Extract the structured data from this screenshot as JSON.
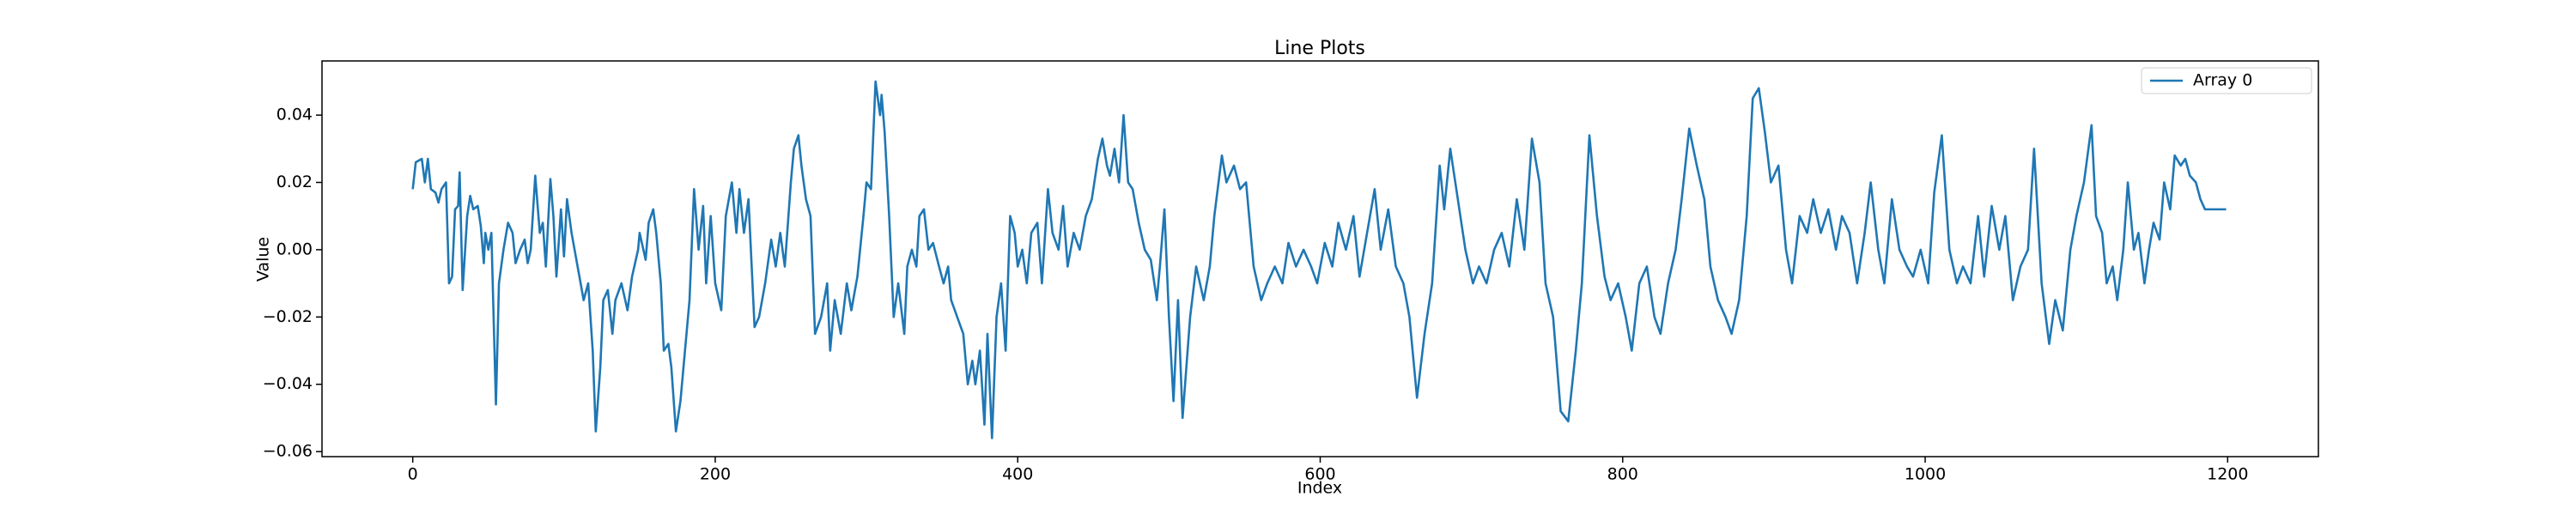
{
  "chart_data": {
    "type": "line",
    "title": "Line Plots",
    "xlabel": "Index",
    "ylabel": "Value",
    "x": [
      0,
      2,
      6,
      8,
      10,
      12,
      15,
      17,
      19,
      22,
      24,
      26,
      28,
      30,
      31,
      33,
      36,
      38,
      40,
      43,
      45,
      47,
      48,
      50,
      52,
      55,
      57,
      60,
      63,
      66,
      68,
      71,
      74,
      76,
      78,
      81,
      84,
      86,
      88,
      91,
      93,
      95,
      98,
      100,
      102,
      105,
      109,
      113,
      116,
      119,
      121,
      124,
      126,
      129,
      132,
      134,
      138,
      142,
      145,
      149,
      150,
      154,
      156,
      159,
      161,
      164,
      166,
      169,
      171,
      174,
      177,
      180,
      183,
      186,
      189,
      192,
      194,
      197,
      200,
      204,
      207,
      211,
      214,
      216,
      219,
      222,
      226,
      229,
      233,
      237,
      240,
      243,
      246,
      250,
      252,
      255,
      257,
      260,
      263,
      266,
      270,
      274,
      276,
      279,
      283,
      287,
      290,
      294,
      298,
      300,
      303,
      306,
      309,
      310,
      312,
      315,
      318,
      321,
      325,
      327,
      330,
      333,
      335,
      338,
      341,
      344,
      348,
      351,
      354,
      356,
      360,
      364,
      367,
      370,
      372,
      375,
      378,
      380,
      383,
      386,
      389,
      392,
      395,
      398,
      400,
      403,
      406,
      409,
      413,
      416,
      420,
      423,
      427,
      430,
      433,
      437,
      441,
      445,
      449,
      453,
      456,
      459,
      461,
      464,
      467,
      470,
      473,
      476,
      480,
      484,
      488,
      492,
      494,
      497,
      500,
      503,
      506,
      509,
      514,
      518,
      523,
      527,
      530,
      535,
      538,
      543,
      547,
      551,
      556,
      561,
      565,
      570,
      575,
      579,
      584,
      589,
      594,
      598,
      603,
      608,
      612,
      617,
      622,
      626,
      631,
      636,
      640,
      645,
      650,
      655,
      659,
      664,
      669,
      674,
      679,
      682,
      686,
      691,
      696,
      701,
      705,
      710,
      715,
      720,
      725,
      730,
      735,
      740,
      745,
      749,
      754,
      759,
      764,
      769,
      773,
      778,
      783,
      788,
      792,
      797,
      802,
      806,
      811,
      816,
      821,
      825,
      830,
      835,
      839,
      844,
      849,
      854,
      858,
      863,
      868,
      872,
      877,
      882,
      886,
      890,
      894,
      898,
      903,
      908,
      912,
      917,
      922,
      926,
      931,
      936,
      941,
      945,
      950,
      955,
      960,
      964,
      969,
      973,
      978,
      983,
      988,
      992,
      997,
      1002,
      1006,
      1011,
      1016,
      1021,
      1025,
      1030,
      1035,
      1039,
      1044,
      1049,
      1053,
      1058,
      1063,
      1068,
      1072,
      1077,
      1082,
      1086,
      1091,
      1096,
      1100,
      1105,
      1110,
      1113,
      1117,
      1120,
      1124,
      1127,
      1131,
      1134,
      1138,
      1141,
      1145,
      1148,
      1151,
      1155,
      1158,
      1162,
      1165,
      1169,
      1172,
      1175,
      1179,
      1182,
      1185,
      1189,
      1199
    ],
    "series": [
      {
        "name": "Array 0",
        "color": "#1f77b4",
        "values": [
          0.018,
          0.026,
          0.027,
          0.02,
          0.027,
          0.018,
          0.017,
          0.014,
          0.018,
          0.02,
          -0.01,
          -0.008,
          0.012,
          0.013,
          0.023,
          -0.012,
          0.01,
          0.016,
          0.012,
          0.013,
          0.007,
          -0.004,
          0.005,
          0.0,
          0.005,
          -0.046,
          -0.01,
          0.0,
          0.008,
          0.005,
          -0.004,
          0.0,
          0.003,
          -0.004,
          0.0,
          0.022,
          0.005,
          0.008,
          -0.005,
          0.021,
          0.01,
          -0.008,
          0.012,
          -0.002,
          0.015,
          0.005,
          -0.005,
          -0.015,
          -0.01,
          -0.03,
          -0.054,
          -0.035,
          -0.015,
          -0.012,
          -0.025,
          -0.015,
          -0.01,
          -0.018,
          -0.008,
          0.0,
          0.005,
          -0.003,
          0.008,
          0.012,
          0.005,
          -0.01,
          -0.03,
          -0.028,
          -0.035,
          -0.054,
          -0.045,
          -0.03,
          -0.015,
          0.018,
          0.0,
          0.013,
          -0.01,
          0.01,
          -0.01,
          -0.018,
          0.01,
          0.02,
          0.005,
          0.018,
          0.005,
          0.015,
          -0.023,
          -0.02,
          -0.01,
          0.003,
          -0.005,
          0.005,
          -0.005,
          0.02,
          0.03,
          0.034,
          0.025,
          0.015,
          0.01,
          -0.025,
          -0.02,
          -0.01,
          -0.03,
          -0.015,
          -0.025,
          -0.01,
          -0.018,
          -0.008,
          0.01,
          0.02,
          0.018,
          0.05,
          0.04,
          0.046,
          0.035,
          0.01,
          -0.02,
          -0.01,
          -0.025,
          -0.005,
          0.0,
          -0.005,
          0.01,
          0.012,
          0.0,
          0.002,
          -0.005,
          -0.01,
          -0.005,
          -0.015,
          -0.02,
          -0.025,
          -0.04,
          -0.033,
          -0.04,
          -0.03,
          -0.052,
          -0.025,
          -0.056,
          -0.02,
          -0.01,
          -0.03,
          0.01,
          0.005,
          -0.005,
          0.0,
          -0.01,
          0.005,
          0.008,
          -0.01,
          0.018,
          0.005,
          0.0,
          0.013,
          -0.005,
          0.005,
          0.0,
          0.01,
          0.015,
          0.027,
          0.033,
          0.025,
          0.022,
          0.03,
          0.02,
          0.04,
          0.02,
          0.018,
          0.008,
          0.0,
          -0.003,
          -0.015,
          -0.005,
          0.012,
          -0.02,
          -0.045,
          -0.015,
          -0.05,
          -0.02,
          -0.005,
          -0.015,
          -0.005,
          0.01,
          0.028,
          0.02,
          0.025,
          0.018,
          0.02,
          -0.005,
          -0.015,
          -0.01,
          -0.005,
          -0.01,
          0.002,
          -0.005,
          0.0,
          -0.005,
          -0.01,
          0.002,
          -0.005,
          0.008,
          0.0,
          0.01,
          -0.008,
          0.005,
          0.018,
          0.0,
          0.012,
          -0.005,
          -0.01,
          -0.02,
          -0.044,
          -0.025,
          -0.01,
          0.025,
          0.012,
          0.03,
          0.015,
          0.0,
          -0.01,
          -0.005,
          -0.01,
          0.0,
          0.005,
          -0.005,
          0.015,
          0.0,
          0.033,
          0.02,
          -0.01,
          -0.02,
          -0.048,
          -0.051,
          -0.03,
          -0.01,
          0.034,
          0.01,
          -0.008,
          -0.015,
          -0.01,
          -0.02,
          -0.03,
          -0.01,
          -0.005,
          -0.02,
          -0.025,
          -0.01,
          0.0,
          0.015,
          0.036,
          0.025,
          0.015,
          -0.005,
          -0.015,
          -0.02,
          -0.025,
          -0.015,
          0.01,
          0.045,
          0.048,
          0.035,
          0.02,
          0.025,
          0.0,
          -0.01,
          0.01,
          0.005,
          0.015,
          0.005,
          0.012,
          0.0,
          0.01,
          0.005,
          -0.01,
          0.005,
          0.02,
          0.0,
          -0.01,
          0.015,
          0.0,
          -0.005,
          -0.008,
          0.0,
          -0.01,
          0.017,
          0.034,
          0.0,
          -0.01,
          -0.005,
          -0.01,
          0.01,
          -0.008,
          0.013,
          0.0,
          0.01,
          -0.015,
          -0.005,
          0.0,
          0.03,
          -0.01,
          -0.028,
          -0.015,
          -0.024,
          0.0,
          0.01,
          0.02,
          0.037,
          0.01,
          0.005,
          -0.01,
          -0.005,
          -0.015,
          0.0,
          0.02,
          0.0,
          0.005,
          -0.01,
          0.0,
          0.008,
          0.003,
          0.02,
          0.012,
          0.028,
          0.025,
          0.027,
          0.022,
          0.02,
          0.015,
          0.012,
          0.012,
          0.012
        ]
      }
    ],
    "xlim": [
      -60,
      1260
    ],
    "xticks": [
      0,
      200,
      400,
      600,
      800,
      1000,
      1200
    ],
    "ylim": [
      -0.0615,
      0.0561
    ],
    "yticks": [
      {
        "value": -0.06,
        "label": "−0.06"
      },
      {
        "value": -0.04,
        "label": "−0.04"
      },
      {
        "value": -0.02,
        "label": "−0.02"
      },
      {
        "value": 0,
        "label": "0.00"
      },
      {
        "value": 0.02,
        "label": "0.02"
      },
      {
        "value": 0.04,
        "label": "0.04"
      }
    ],
    "legend": "upper right",
    "grid": false
  }
}
